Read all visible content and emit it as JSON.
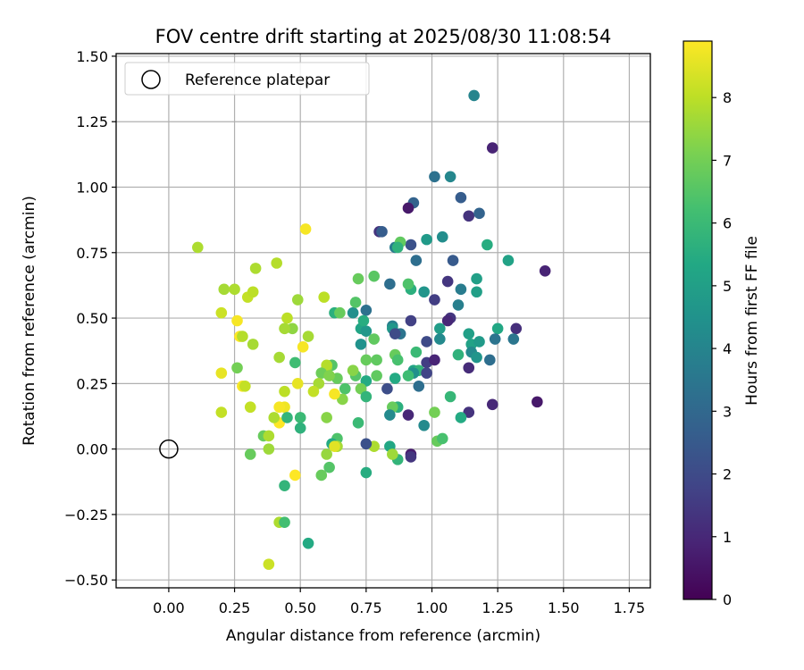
{
  "chart_data": {
    "type": "scatter",
    "title": "FOV centre drift starting at 2025/08/30 11:08:54",
    "xlabel": "Angular distance from reference (arcmin)",
    "ylabel": "Rotation from reference (arcmin)",
    "xlim": [
      -0.2,
      1.83
    ],
    "ylim": [
      -0.53,
      1.51
    ],
    "x_ticks": [
      0.0,
      0.25,
      0.5,
      0.75,
      1.0,
      1.25,
      1.5,
      1.75
    ],
    "x_tick_labels": [
      "0.00",
      "0.25",
      "0.50",
      "0.75",
      "1.00",
      "1.25",
      "1.50",
      "1.75"
    ],
    "y_ticks": [
      -0.5,
      -0.25,
      0.0,
      0.25,
      0.5,
      0.75,
      1.0,
      1.25,
      1.5
    ],
    "y_tick_labels": [
      "−0.50",
      "−0.25",
      "0.00",
      "0.25",
      "0.50",
      "0.75",
      "1.00",
      "1.25",
      "1.50"
    ],
    "grid": true,
    "legend": {
      "position": "top-left",
      "entries": [
        "Reference platepar"
      ]
    },
    "reference_point": {
      "x": 0.0,
      "y": 0.0,
      "label": "Reference platepar"
    },
    "colorbar": {
      "label": "Hours from first FF file",
      "colormap": "viridis",
      "range": [
        0,
        8.9
      ],
      "ticks": [
        0,
        1,
        2,
        3,
        4,
        5,
        6,
        7,
        8
      ],
      "tick_labels": [
        "0",
        "1",
        "2",
        "3",
        "4",
        "5",
        "6",
        "7",
        "8"
      ]
    },
    "points": [
      {
        "x": 1.16,
        "y": 1.35,
        "c": 4.0
      },
      {
        "x": 1.23,
        "y": 1.15,
        "c": 0.9
      },
      {
        "x": 1.07,
        "y": 1.04,
        "c": 4.1
      },
      {
        "x": 1.01,
        "y": 1.04,
        "c": 3.3
      },
      {
        "x": 1.11,
        "y": 0.96,
        "c": 2.6
      },
      {
        "x": 0.93,
        "y": 0.94,
        "c": 2.8
      },
      {
        "x": 0.91,
        "y": 0.92,
        "c": 0.6
      },
      {
        "x": 1.14,
        "y": 0.89,
        "c": 1.3
      },
      {
        "x": 1.18,
        "y": 0.9,
        "c": 2.8
      },
      {
        "x": 0.8,
        "y": 0.83,
        "c": 1.3
      },
      {
        "x": 0.81,
        "y": 0.83,
        "c": 2.6
      },
      {
        "x": 0.98,
        "y": 0.8,
        "c": 4.8
      },
      {
        "x": 1.04,
        "y": 0.81,
        "c": 4.3
      },
      {
        "x": 1.21,
        "y": 0.78,
        "c": 5.5
      },
      {
        "x": 0.92,
        "y": 0.78,
        "c": 2.2
      },
      {
        "x": 0.86,
        "y": 0.77,
        "c": 3.7
      },
      {
        "x": 0.88,
        "y": 0.79,
        "c": 6.7
      },
      {
        "x": 0.87,
        "y": 0.77,
        "c": 5.7
      },
      {
        "x": 1.08,
        "y": 0.72,
        "c": 2.5
      },
      {
        "x": 0.94,
        "y": 0.72,
        "c": 3.2
      },
      {
        "x": 1.29,
        "y": 0.72,
        "c": 5.1
      },
      {
        "x": 1.43,
        "y": 0.68,
        "c": 0.9
      },
      {
        "x": 1.17,
        "y": 0.65,
        "c": 5.0
      },
      {
        "x": 1.06,
        "y": 0.64,
        "c": 1.4
      },
      {
        "x": 1.11,
        "y": 0.61,
        "c": 3.7
      },
      {
        "x": 1.17,
        "y": 0.6,
        "c": 5.0
      },
      {
        "x": 0.97,
        "y": 0.6,
        "c": 4.6
      },
      {
        "x": 0.92,
        "y": 0.61,
        "c": 5.6
      },
      {
        "x": 0.84,
        "y": 0.63,
        "c": 3.2
      },
      {
        "x": 0.78,
        "y": 0.66,
        "c": 6.6
      },
      {
        "x": 0.72,
        "y": 0.65,
        "c": 6.8
      },
      {
        "x": 0.91,
        "y": 0.63,
        "c": 6.4
      },
      {
        "x": 1.1,
        "y": 0.55,
        "c": 3.8
      },
      {
        "x": 1.01,
        "y": 0.57,
        "c": 1.6
      },
      {
        "x": 1.07,
        "y": 0.5,
        "c": 1.4
      },
      {
        "x": 1.06,
        "y": 0.49,
        "c": 1.0
      },
      {
        "x": 0.92,
        "y": 0.49,
        "c": 1.7
      },
      {
        "x": 0.75,
        "y": 0.53,
        "c": 3.3
      },
      {
        "x": 0.7,
        "y": 0.52,
        "c": 4.4
      },
      {
        "x": 0.71,
        "y": 0.56,
        "c": 6.5
      },
      {
        "x": 0.63,
        "y": 0.52,
        "c": 5.6
      },
      {
        "x": 0.65,
        "y": 0.52,
        "c": 6.8
      },
      {
        "x": 1.03,
        "y": 0.46,
        "c": 4.9
      },
      {
        "x": 1.14,
        "y": 0.44,
        "c": 5.0
      },
      {
        "x": 1.25,
        "y": 0.46,
        "c": 5.3
      },
      {
        "x": 1.32,
        "y": 0.46,
        "c": 1.2
      },
      {
        "x": 0.85,
        "y": 0.47,
        "c": 3.8
      },
      {
        "x": 0.85,
        "y": 0.46,
        "c": 4.7
      },
      {
        "x": 0.73,
        "y": 0.46,
        "c": 5.2
      },
      {
        "x": 0.75,
        "y": 0.45,
        "c": 4.7
      },
      {
        "x": 0.88,
        "y": 0.44,
        "c": 3.4
      },
      {
        "x": 0.86,
        "y": 0.44,
        "c": 2.0
      },
      {
        "x": 0.74,
        "y": 0.49,
        "c": 5.5
      },
      {
        "x": 0.78,
        "y": 0.42,
        "c": 6.7
      },
      {
        "x": 0.98,
        "y": 0.41,
        "c": 2.0
      },
      {
        "x": 1.03,
        "y": 0.42,
        "c": 4.2
      },
      {
        "x": 1.15,
        "y": 0.4,
        "c": 5.1
      },
      {
        "x": 1.18,
        "y": 0.41,
        "c": 4.8
      },
      {
        "x": 1.24,
        "y": 0.42,
        "c": 3.4
      },
      {
        "x": 1.31,
        "y": 0.42,
        "c": 3.5
      },
      {
        "x": 0.73,
        "y": 0.4,
        "c": 4.5
      },
      {
        "x": 1.15,
        "y": 0.37,
        "c": 4.2
      },
      {
        "x": 1.17,
        "y": 0.35,
        "c": 4.6
      },
      {
        "x": 1.22,
        "y": 0.34,
        "c": 3.2
      },
      {
        "x": 1.1,
        "y": 0.36,
        "c": 5.7
      },
      {
        "x": 0.94,
        "y": 0.37,
        "c": 6.0
      },
      {
        "x": 0.86,
        "y": 0.36,
        "c": 6.8
      },
      {
        "x": 0.79,
        "y": 0.34,
        "c": 6.7
      },
      {
        "x": 0.75,
        "y": 0.34,
        "c": 6.8
      },
      {
        "x": 0.87,
        "y": 0.34,
        "c": 6.3
      },
      {
        "x": 0.98,
        "y": 0.33,
        "c": 1.6
      },
      {
        "x": 1.01,
        "y": 0.34,
        "c": 0.9
      },
      {
        "x": 1.14,
        "y": 0.31,
        "c": 1.1
      },
      {
        "x": 0.93,
        "y": 0.3,
        "c": 5.2
      },
      {
        "x": 0.95,
        "y": 0.3,
        "c": 5.8
      },
      {
        "x": 0.93,
        "y": 0.29,
        "c": 4.4
      },
      {
        "x": 0.98,
        "y": 0.29,
        "c": 1.8
      },
      {
        "x": 0.91,
        "y": 0.28,
        "c": 6.1
      },
      {
        "x": 0.86,
        "y": 0.27,
        "c": 5.4
      },
      {
        "x": 0.79,
        "y": 0.28,
        "c": 6.7
      },
      {
        "x": 0.71,
        "y": 0.28,
        "c": 6.5
      },
      {
        "x": 0.75,
        "y": 0.26,
        "c": 5.4
      },
      {
        "x": 0.7,
        "y": 0.3,
        "c": 7.3
      },
      {
        "x": 0.83,
        "y": 0.23,
        "c": 2.1
      },
      {
        "x": 0.95,
        "y": 0.24,
        "c": 3.2
      },
      {
        "x": 0.73,
        "y": 0.23,
        "c": 7.0
      },
      {
        "x": 0.67,
        "y": 0.23,
        "c": 6.4
      },
      {
        "x": 0.75,
        "y": 0.2,
        "c": 5.8
      },
      {
        "x": 0.66,
        "y": 0.19,
        "c": 7.3
      },
      {
        "x": 0.64,
        "y": 0.27,
        "c": 6.8
      },
      {
        "x": 0.62,
        "y": 0.32,
        "c": 6.5
      },
      {
        "x": 0.6,
        "y": 0.31,
        "c": 7.4
      },
      {
        "x": 0.6,
        "y": 0.32,
        "c": 7.9
      },
      {
        "x": 0.58,
        "y": 0.29,
        "c": 6.9
      },
      {
        "x": 0.57,
        "y": 0.25,
        "c": 7.7
      },
      {
        "x": 0.55,
        "y": 0.22,
        "c": 8.1
      },
      {
        "x": 0.61,
        "y": 0.28,
        "c": 7.2
      },
      {
        "x": 0.63,
        "y": 0.21,
        "c": 8.8
      },
      {
        "x": 1.07,
        "y": 0.2,
        "c": 5.9
      },
      {
        "x": 1.23,
        "y": 0.17,
        "c": 1.0
      },
      {
        "x": 1.4,
        "y": 0.18,
        "c": 0.6
      },
      {
        "x": 1.14,
        "y": 0.14,
        "c": 1.3
      },
      {
        "x": 1.11,
        "y": 0.12,
        "c": 5.4
      },
      {
        "x": 1.01,
        "y": 0.14,
        "c": 7.0
      },
      {
        "x": 0.97,
        "y": 0.09,
        "c": 4.2
      },
      {
        "x": 0.91,
        "y": 0.13,
        "c": 1.0
      },
      {
        "x": 0.87,
        "y": 0.16,
        "c": 5.6
      },
      {
        "x": 0.85,
        "y": 0.16,
        "c": 6.8
      },
      {
        "x": 0.84,
        "y": 0.13,
        "c": 4.2
      },
      {
        "x": 0.72,
        "y": 0.1,
        "c": 6.0
      },
      {
        "x": 1.02,
        "y": 0.03,
        "c": 6.8
      },
      {
        "x": 1.04,
        "y": 0.04,
        "c": 6.3
      },
      {
        "x": 0.84,
        "y": 0.01,
        "c": 5.3
      },
      {
        "x": 0.78,
        "y": 0.01,
        "c": 7.8
      },
      {
        "x": 0.75,
        "y": 0.02,
        "c": 2.2
      },
      {
        "x": 0.92,
        "y": -0.02,
        "c": 0.7
      },
      {
        "x": 0.92,
        "y": -0.03,
        "c": 1.4
      },
      {
        "x": 0.87,
        "y": -0.04,
        "c": 5.8
      },
      {
        "x": 0.85,
        "y": -0.02,
        "c": 7.6
      },
      {
        "x": 0.75,
        "y": -0.09,
        "c": 5.5
      },
      {
        "x": 0.6,
        "y": 0.12,
        "c": 7.3
      },
      {
        "x": 0.5,
        "y": 0.12,
        "c": 6.0
      },
      {
        "x": 0.49,
        "y": 0.25,
        "c": 8.6
      },
      {
        "x": 0.48,
        "y": 0.33,
        "c": 6.1
      },
      {
        "x": 0.44,
        "y": 0.22,
        "c": 8.0
      },
      {
        "x": 0.44,
        "y": 0.16,
        "c": 8.7
      },
      {
        "x": 0.42,
        "y": 0.16,
        "c": 8.8
      },
      {
        "x": 0.42,
        "y": 0.1,
        "c": 8.9
      },
      {
        "x": 0.4,
        "y": 0.12,
        "c": 7.8
      },
      {
        "x": 0.45,
        "y": 0.12,
        "c": 5.8
      },
      {
        "x": 0.5,
        "y": 0.08,
        "c": 5.7
      },
      {
        "x": 0.64,
        "y": 0.04,
        "c": 6.4
      },
      {
        "x": 0.62,
        "y": 0.02,
        "c": 5.4
      },
      {
        "x": 0.64,
        "y": 0.01,
        "c": 7.7
      },
      {
        "x": 0.63,
        "y": 0.01,
        "c": 8.5
      },
      {
        "x": 0.6,
        "y": -0.02,
        "c": 7.5
      },
      {
        "x": 0.61,
        "y": -0.07,
        "c": 6.5
      },
      {
        "x": 0.58,
        "y": -0.1,
        "c": 6.8
      },
      {
        "x": 0.48,
        "y": -0.1,
        "c": 8.9
      },
      {
        "x": 0.44,
        "y": -0.14,
        "c": 5.8
      },
      {
        "x": 0.42,
        "y": -0.28,
        "c": 7.8
      },
      {
        "x": 0.44,
        "y": -0.28,
        "c": 6.2
      },
      {
        "x": 0.53,
        "y": -0.36,
        "c": 5.4
      },
      {
        "x": 0.38,
        "y": -0.44,
        "c": 8.2
      },
      {
        "x": 0.36,
        "y": 0.05,
        "c": 6.8
      },
      {
        "x": 0.38,
        "y": 0.05,
        "c": 7.8
      },
      {
        "x": 0.38,
        "y": 0.0,
        "c": 7.6
      },
      {
        "x": 0.31,
        "y": -0.02,
        "c": 6.8
      },
      {
        "x": 0.2,
        "y": 0.14,
        "c": 8.1
      },
      {
        "x": 0.2,
        "y": 0.29,
        "c": 8.6
      },
      {
        "x": 0.26,
        "y": 0.31,
        "c": 7.0
      },
      {
        "x": 0.28,
        "y": 0.24,
        "c": 8.8
      },
      {
        "x": 0.29,
        "y": 0.24,
        "c": 8.1
      },
      {
        "x": 0.31,
        "y": 0.16,
        "c": 8.1
      },
      {
        "x": 0.32,
        "y": 0.4,
        "c": 7.7
      },
      {
        "x": 0.27,
        "y": 0.43,
        "c": 8.9
      },
      {
        "x": 0.28,
        "y": 0.43,
        "c": 7.9
      },
      {
        "x": 0.26,
        "y": 0.49,
        "c": 8.8
      },
      {
        "x": 0.2,
        "y": 0.52,
        "c": 8.2
      },
      {
        "x": 0.21,
        "y": 0.61,
        "c": 7.7
      },
      {
        "x": 0.25,
        "y": 0.61,
        "c": 7.8
      },
      {
        "x": 0.3,
        "y": 0.58,
        "c": 8.1
      },
      {
        "x": 0.32,
        "y": 0.6,
        "c": 8.0
      },
      {
        "x": 0.33,
        "y": 0.69,
        "c": 7.8
      },
      {
        "x": 0.11,
        "y": 0.77,
        "c": 7.8
      },
      {
        "x": 0.41,
        "y": 0.71,
        "c": 7.9
      },
      {
        "x": 0.52,
        "y": 0.84,
        "c": 8.8
      },
      {
        "x": 0.45,
        "y": 0.5,
        "c": 8.0
      },
      {
        "x": 0.47,
        "y": 0.46,
        "c": 7.4
      },
      {
        "x": 0.44,
        "y": 0.46,
        "c": 7.7
      },
      {
        "x": 0.49,
        "y": 0.57,
        "c": 7.6
      },
      {
        "x": 0.53,
        "y": 0.43,
        "c": 7.7
      },
      {
        "x": 0.51,
        "y": 0.39,
        "c": 8.8
      },
      {
        "x": 0.42,
        "y": 0.35,
        "c": 7.7
      },
      {
        "x": 0.59,
        "y": 0.58,
        "c": 8.0
      }
    ]
  }
}
